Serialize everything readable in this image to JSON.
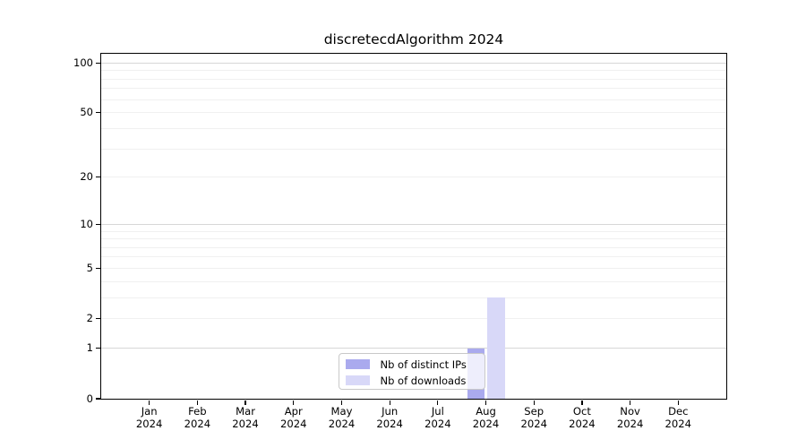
{
  "chart_data": {
    "type": "bar",
    "title": "discretecdAlgorithm 2024",
    "categories": [
      "Jan 2024",
      "Feb 2024",
      "Mar 2024",
      "Apr 2024",
      "May 2024",
      "Jun 2024",
      "Jul 2024",
      "Aug 2024",
      "Sep 2024",
      "Oct 2024",
      "Nov 2024",
      "Dec 2024"
    ],
    "series": [
      {
        "name": "Nb of distinct IPs",
        "color": "#aaaaee",
        "values": [
          0,
          0,
          0,
          0,
          0,
          0,
          0,
          1,
          0,
          0,
          0,
          0
        ]
      },
      {
        "name": "Nb of downloads",
        "color": "#d8d8f8",
        "values": [
          0,
          0,
          0,
          0,
          0,
          0,
          0,
          3,
          0,
          0,
          0,
          0
        ]
      }
    ],
    "xlabel": "",
    "ylabel": "",
    "y_ticks": [
      0,
      1,
      2,
      5,
      10,
      20,
      50,
      100
    ],
    "ylim": [
      0,
      114
    ],
    "yscale": "log10(1+x)",
    "grid": true,
    "legend_position": "bottom-center",
    "colors": {
      "major_grid": "#d7d7d7",
      "minor_grid": "#f0f0f0",
      "spine": "#000000",
      "text": "#000000"
    }
  }
}
